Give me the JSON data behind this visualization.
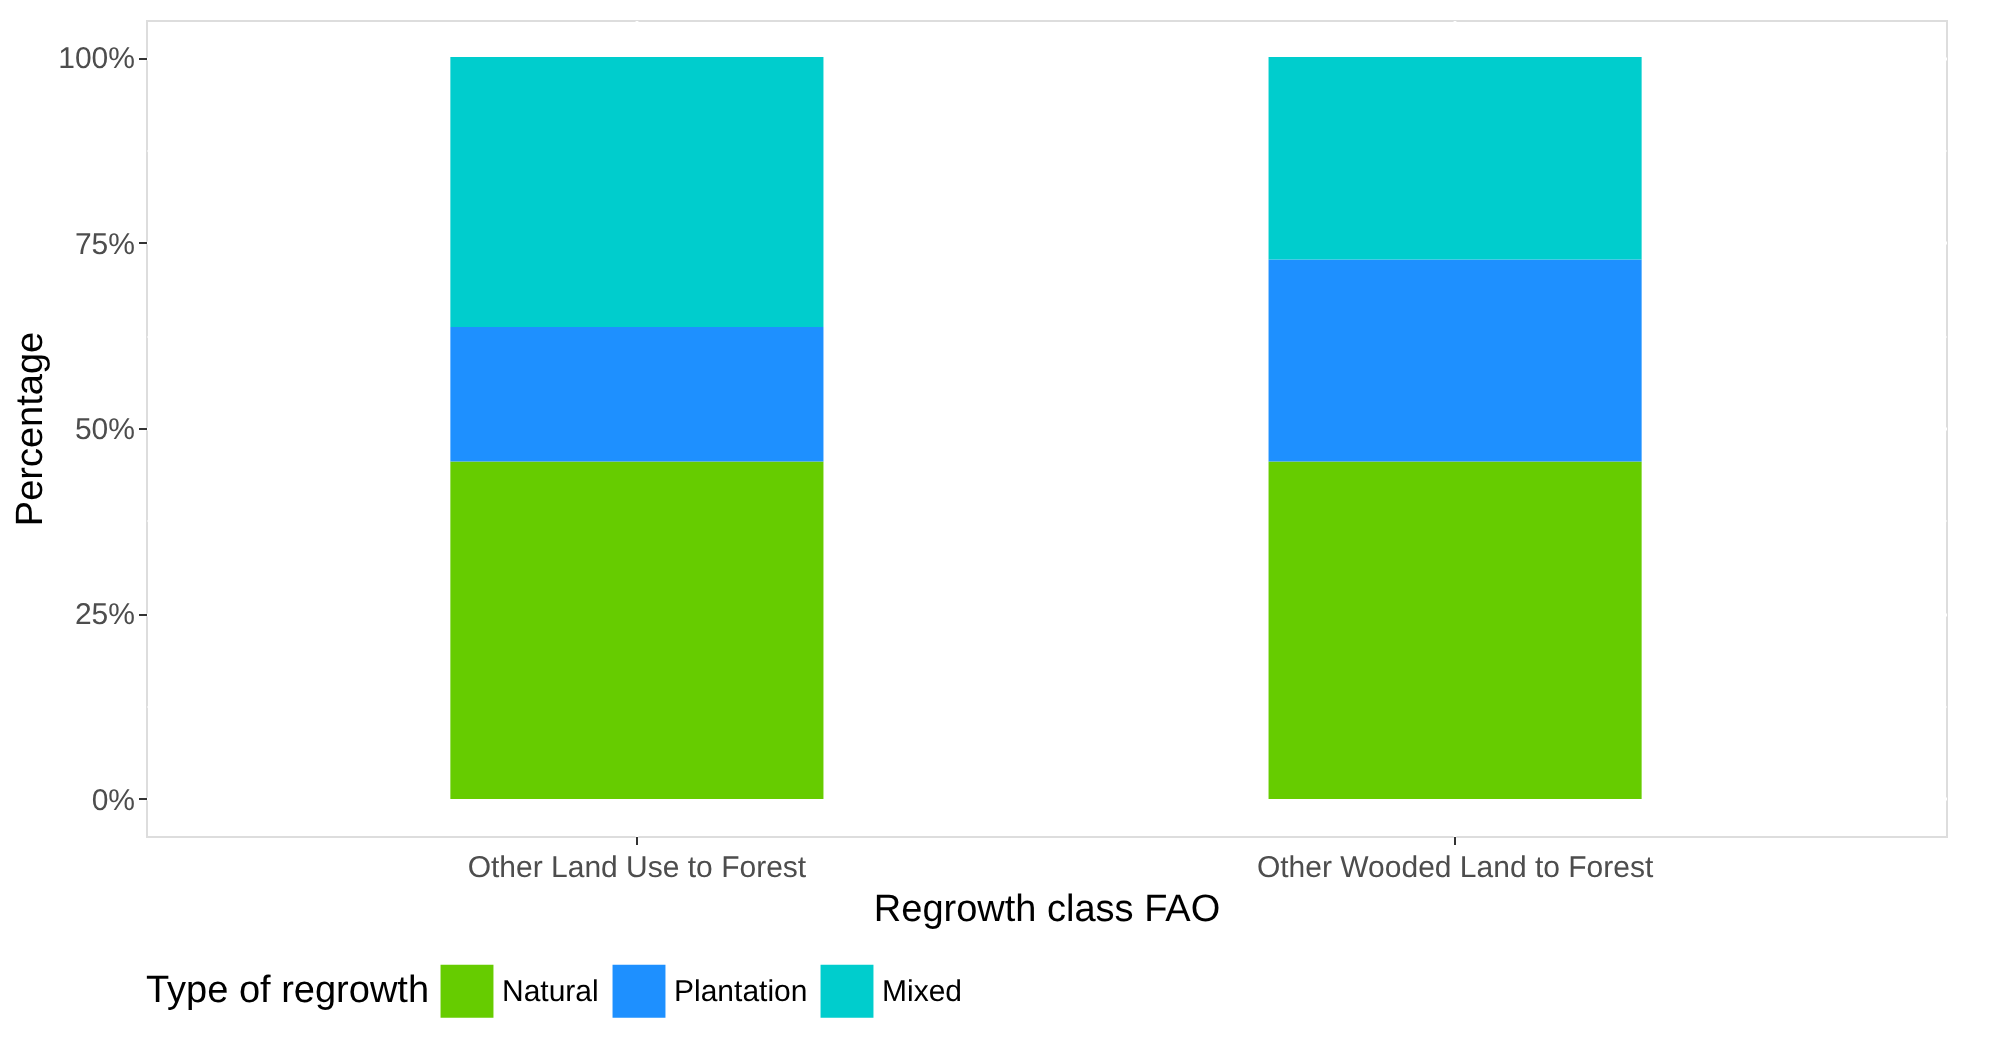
{
  "chart_data": {
    "type": "bar",
    "stacked": true,
    "xlabel": "Regrowth class FAO",
    "ylabel": "Percentage",
    "legend_title": "Type of regrowth",
    "legend": "bottom",
    "grid": true,
    "categories": [
      "Other Land Use to Forest",
      "Other Wooded Land to Forest"
    ],
    "series": [
      {
        "name": "Natural",
        "color": "#66cc00",
        "values": [
          45.5,
          45.5
        ]
      },
      {
        "name": "Plantation",
        "color": "#1e90ff",
        "values": [
          18.1,
          27.2
        ]
      },
      {
        "name": "Mixed",
        "color": "#00cdcd",
        "values": [
          36.4,
          27.3
        ]
      }
    ],
    "ylim": [
      -5,
      105
    ],
    "yticks": [
      {
        "value": 0,
        "label": "0%"
      },
      {
        "value": 12.5,
        "label": null
      },
      {
        "value": 25,
        "label": "25%"
      },
      {
        "value": 37.5,
        "label": null
      },
      {
        "value": 50,
        "label": "50%"
      },
      {
        "value": 62.5,
        "label": null
      },
      {
        "value": 75,
        "label": "75%"
      },
      {
        "value": 87.5,
        "label": null
      },
      {
        "value": 100,
        "label": "100%"
      }
    ]
  }
}
